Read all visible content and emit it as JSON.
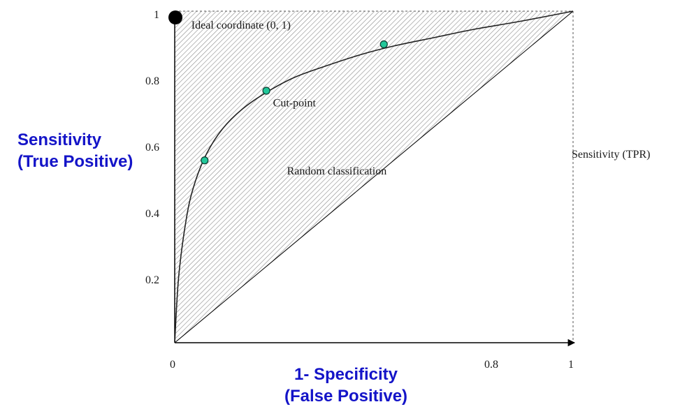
{
  "colors": {
    "axis_label": "#1414c8",
    "curve": "#222222",
    "marker_fill": "#22c79a",
    "marker_stroke": "#0c3b2e",
    "ideal_point": "#000000",
    "hatch": "#8a8a8a"
  },
  "chart_data": {
    "type": "line",
    "title": "",
    "xlabel_lines": [
      "1- Specificity",
      "(False Positive)"
    ],
    "ylabel_lines": [
      "Sensitivity",
      "(True Positive)"
    ],
    "right_label": "Sensitivity (TPR)",
    "xlim": [
      0,
      1
    ],
    "ylim": [
      0,
      1
    ],
    "x_ticks": [
      {
        "value": 0,
        "label": "0"
      },
      {
        "value": 0.8,
        "label": "0.8"
      },
      {
        "value": 1,
        "label": "1"
      }
    ],
    "y_ticks": [
      {
        "value": 0.2,
        "label": "0.2"
      },
      {
        "value": 0.4,
        "label": "0.4"
      },
      {
        "value": 0.6,
        "label": "0.6"
      },
      {
        "value": 0.8,
        "label": "0.8"
      },
      {
        "value": 1,
        "label": "1"
      }
    ],
    "curve": {
      "x": [
        0,
        0.01,
        0.03,
        0.05,
        0.08,
        0.12,
        0.17,
        0.23,
        0.3,
        0.38,
        0.47,
        0.55,
        0.65,
        0.75,
        0.87,
        1
      ],
      "y": [
        0,
        0.2,
        0.38,
        0.48,
        0.57,
        0.645,
        0.705,
        0.755,
        0.8,
        0.835,
        0.87,
        0.895,
        0.92,
        0.945,
        0.97,
        1
      ]
    },
    "cut_points": [
      {
        "x": 0.075,
        "y": 0.55
      },
      {
        "x": 0.23,
        "y": 0.76
      },
      {
        "x": 0.525,
        "y": 0.9
      }
    ],
    "diagonal": {
      "x": [
        0,
        1
      ],
      "y": [
        0,
        1
      ]
    },
    "ideal_point": {
      "x": 0,
      "y": 1
    },
    "annotations": [
      {
        "text": "Ideal coordinate (0, 1)",
        "x": 0.04,
        "y": 0.96
      },
      {
        "text": "Cut-point",
        "x": 0.245,
        "y": 0.725
      },
      {
        "text": "Random classification",
        "x": 0.28,
        "y": 0.52
      }
    ]
  }
}
